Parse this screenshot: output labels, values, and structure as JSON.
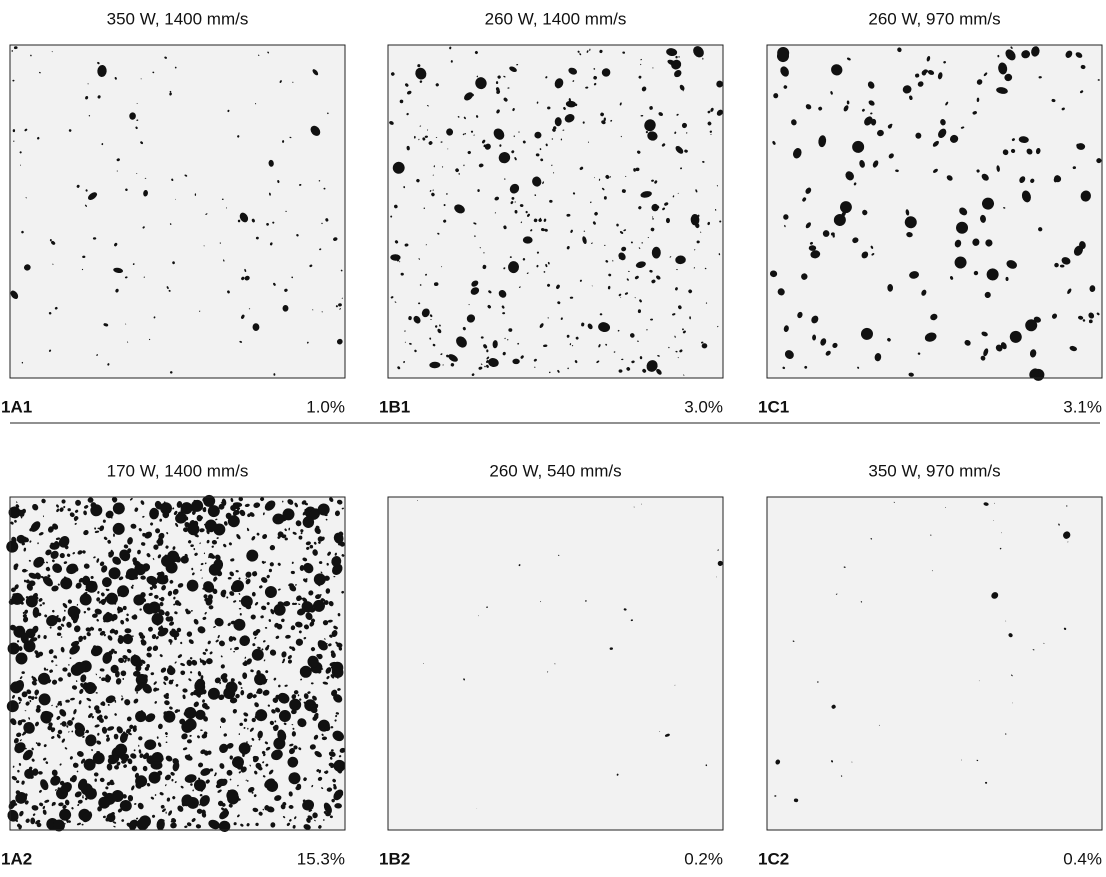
{
  "panels": [
    {
      "title": "350 W, 1400 mm/s",
      "label": "1A1",
      "porosity": "1.0%"
    },
    {
      "title": "260 W, 1400 mm/s",
      "label": "1B1",
      "porosity": "3.0%"
    },
    {
      "title": "260 W, 970 mm/s",
      "label": "1C1",
      "porosity": "3.1%"
    },
    {
      "title": "170 W, 1400 mm/s",
      "label": "1A2",
      "porosity": "15.3%"
    },
    {
      "title": "260 W, 540 mm/s",
      "label": "1B2",
      "porosity": "0.2%"
    },
    {
      "title": "350 W, 970 mm/s",
      "label": "1C2",
      "porosity": "0.4%"
    }
  ]
}
